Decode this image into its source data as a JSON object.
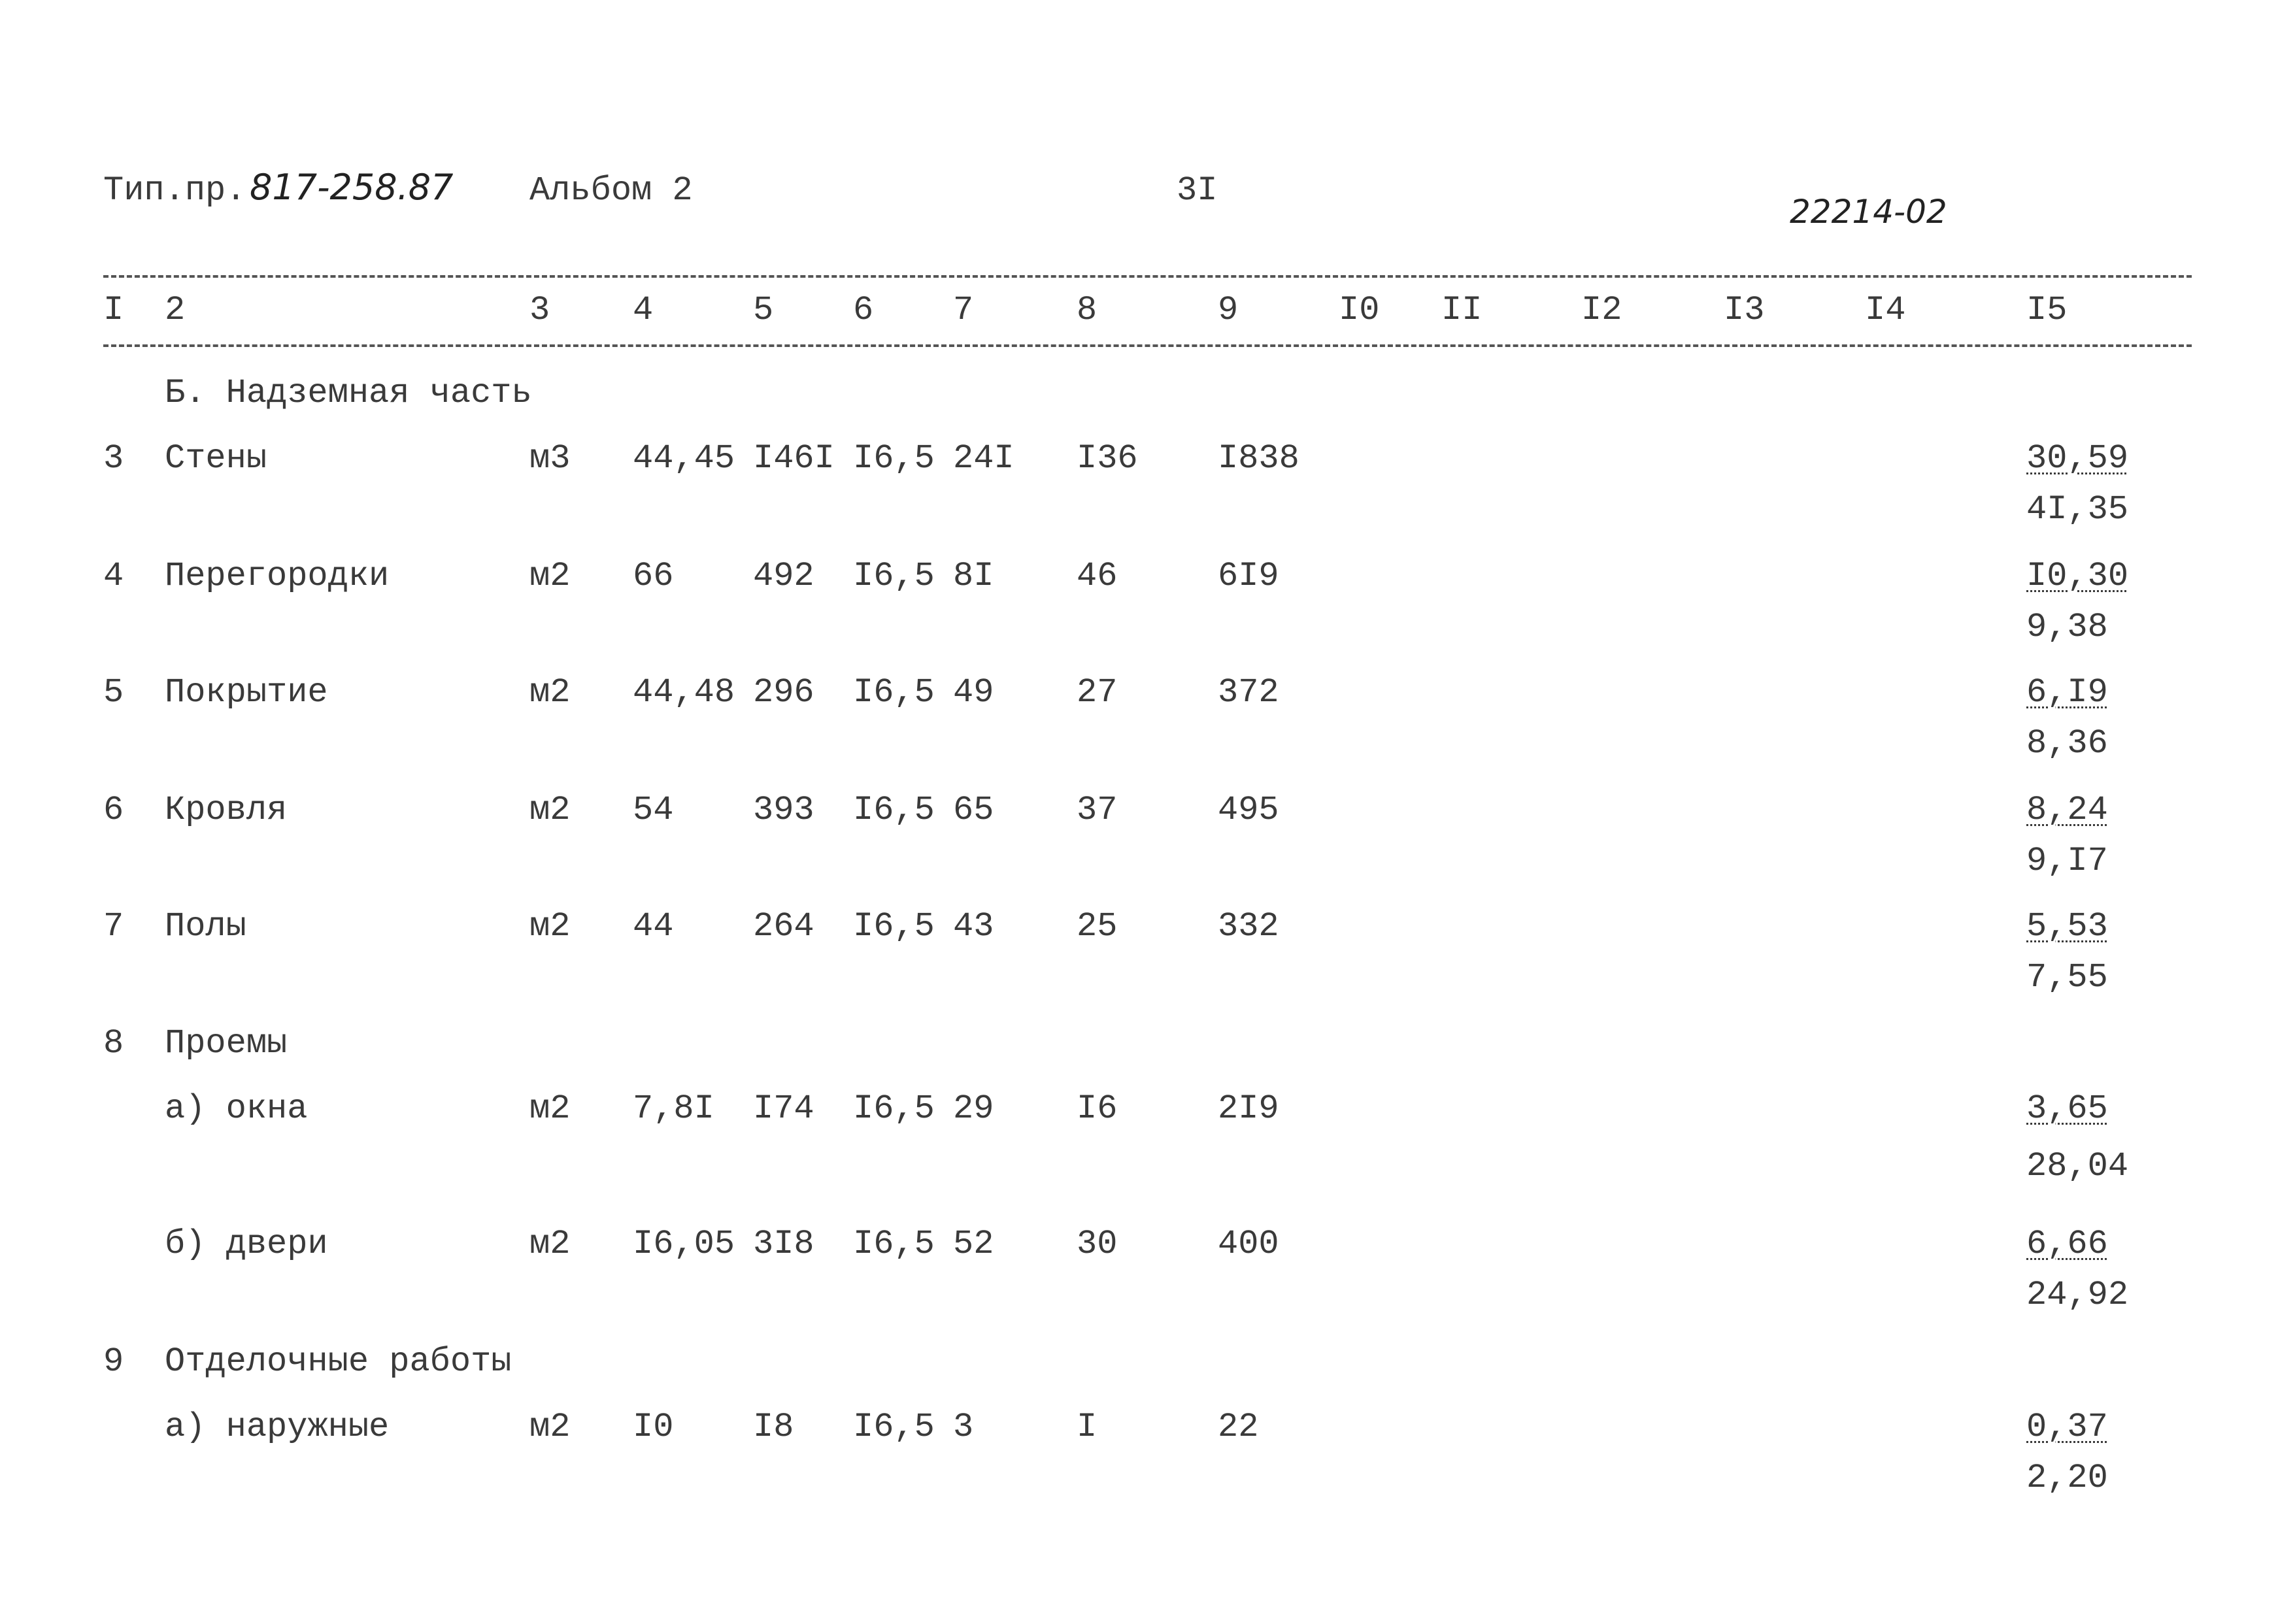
{
  "header": {
    "type_project_label": "Тип.пр.",
    "type_project_number": "817-258.87",
    "album": "Альбом 2",
    "page_number": "3I",
    "stamp_code": "22214-02"
  },
  "columns": [
    "I",
    "2",
    "3",
    "4",
    "5",
    "6",
    "7",
    "8",
    "9",
    "I0",
    "II",
    "I2",
    "I3",
    "I4",
    "I5"
  ],
  "section_title": "Б. Надземная часть",
  "rows": [
    {
      "no": "3",
      "name": "Стены",
      "unit": "м3",
      "c4": "44,45",
      "c5": "I46I",
      "c6": "I6,5",
      "c7": "24I",
      "c8": "I36",
      "c9": "I838",
      "c15_top": "30,59",
      "c15_bottom": "4I,35"
    },
    {
      "no": "4",
      "name": "Перегородки",
      "unit": "м2",
      "c4": "66",
      "c5": "492",
      "c6": "I6,5",
      "c7": "8I",
      "c8": "46",
      "c9": "6I9",
      "c15_top": "I0,30",
      "c15_bottom": "9,38"
    },
    {
      "no": "5",
      "name": "Покрытие",
      "unit": "м2",
      "c4": "44,48",
      "c5": "296",
      "c6": "I6,5",
      "c7": "49",
      "c8": "27",
      "c9": "372",
      "c15_top": "6,I9",
      "c15_bottom": "8,36"
    },
    {
      "no": "6",
      "name": "Кровля",
      "unit": "м2",
      "c4": "54",
      "c5": "393",
      "c6": "I6,5",
      "c7": "65",
      "c8": "37",
      "c9": "495",
      "c15_top": "8,24",
      "c15_bottom": "9,I7"
    },
    {
      "no": "7",
      "name": "Полы",
      "unit": "м2",
      "c4": "44",
      "c5": "264",
      "c6": "I6,5",
      "c7": "43",
      "c8": "25",
      "c9": "332",
      "c15_top": "5,53",
      "c15_bottom": "7,55"
    },
    {
      "no": "8",
      "name": "Проемы"
    },
    {
      "no": "",
      "name": "а) окна",
      "unit": "м2",
      "c4": "7,8I",
      "c5": "I74",
      "c6": "I6,5",
      "c7": "29",
      "c8": "I6",
      "c9": "2I9",
      "c15_top": "3,65",
      "c15_bottom": "28,04"
    },
    {
      "no": "",
      "name": "б) двери",
      "unit": "м2",
      "c4": "I6,05",
      "c5": "3I8",
      "c6": "I6,5",
      "c7": "52",
      "c8": "30",
      "c9": "400",
      "c15_top": "6,66",
      "c15_bottom": "24,92"
    },
    {
      "no": "9",
      "name": "Отделочные работы"
    },
    {
      "no": "",
      "name": "а) наружные",
      "unit": "м2",
      "c4": "I0",
      "c5": "I8",
      "c6": "I6,5",
      "c7": "3",
      "c8": "I",
      "c9": "22",
      "c15_top": "0,37",
      "c15_bottom": "2,20"
    }
  ]
}
